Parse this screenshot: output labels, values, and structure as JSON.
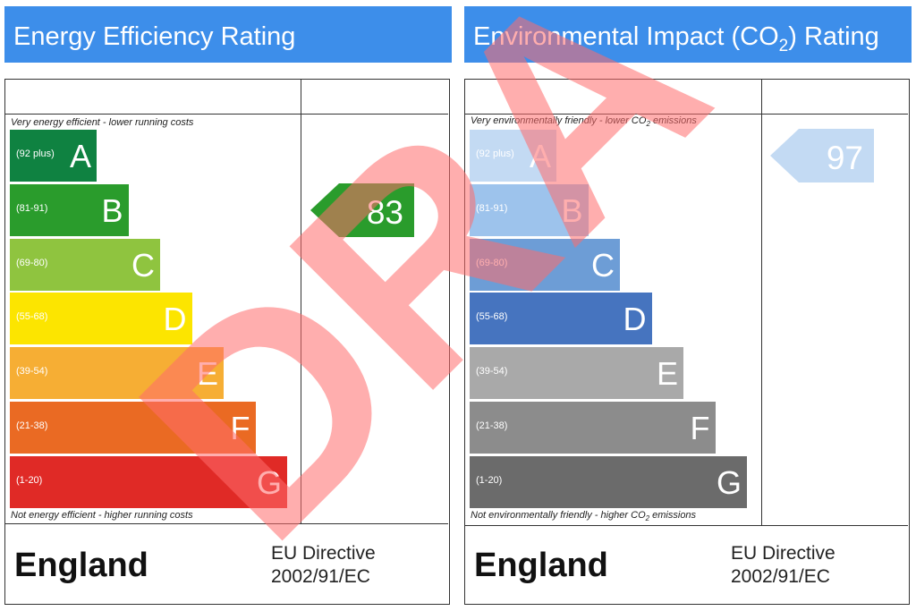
{
  "colors": {
    "title_bar": "#3d8eea",
    "watermark": "#ff6b6b",
    "energy_bands": [
      "#0f8241",
      "#2a9c2c",
      "#8fc43f",
      "#fce500",
      "#f6ae34",
      "#ea6a23",
      "#e02a26"
    ],
    "co2_bands": [
      "#c3daf3",
      "#9dc3ec",
      "#6d9dd6",
      "#4674bf",
      "#a9a9a9",
      "#8c8c8c",
      "#6b6b6b"
    ],
    "energy_arrow": "#2a9c2c",
    "co2_arrow": "#c3daf3"
  },
  "watermark": {
    "text": "DRA"
  },
  "chart_data": [
    {
      "type": "bar",
      "title": "Energy Efficiency Rating",
      "top_caption": "Very energy efficient - lower running costs",
      "bottom_caption": "Not energy efficient - higher running costs",
      "bands": [
        {
          "letter": "A",
          "range": "(92 plus)"
        },
        {
          "letter": "B",
          "range": "(81-91)"
        },
        {
          "letter": "C",
          "range": "(69-80)"
        },
        {
          "letter": "D",
          "range": "(55-68)"
        },
        {
          "letter": "E",
          "range": "(39-54)"
        },
        {
          "letter": "F",
          "range": "(21-38)"
        },
        {
          "letter": "G",
          "range": "(1-20)"
        }
      ],
      "current_rating": 83,
      "current_band": "B",
      "country": "England",
      "directive_line1": "EU Directive",
      "directive_line2": "2002/91/EC"
    },
    {
      "type": "bar",
      "title_part1": "Environmental Impact (CO",
      "title_sub": "2",
      "title_part2": ") Rating",
      "top_caption_part1": "Very environmentally friendly - lower CO",
      "top_caption_sub": "2",
      "top_caption_part2": " emissions",
      "bottom_caption_part1": "Not environmentally friendly - higher CO",
      "bottom_caption_sub": "2",
      "bottom_caption_part2": " emissions",
      "bands": [
        {
          "letter": "A",
          "range": "(92 plus)"
        },
        {
          "letter": "B",
          "range": "(81-91)"
        },
        {
          "letter": "C",
          "range": "(69-80)"
        },
        {
          "letter": "D",
          "range": "(55-68)"
        },
        {
          "letter": "E",
          "range": "(39-54)"
        },
        {
          "letter": "F",
          "range": "(21-38)"
        },
        {
          "letter": "G",
          "range": "(1-20)"
        }
      ],
      "current_rating": 97,
      "current_band": "A",
      "country": "England",
      "directive_line1": "EU Directive",
      "directive_line2": "2002/91/EC"
    }
  ]
}
